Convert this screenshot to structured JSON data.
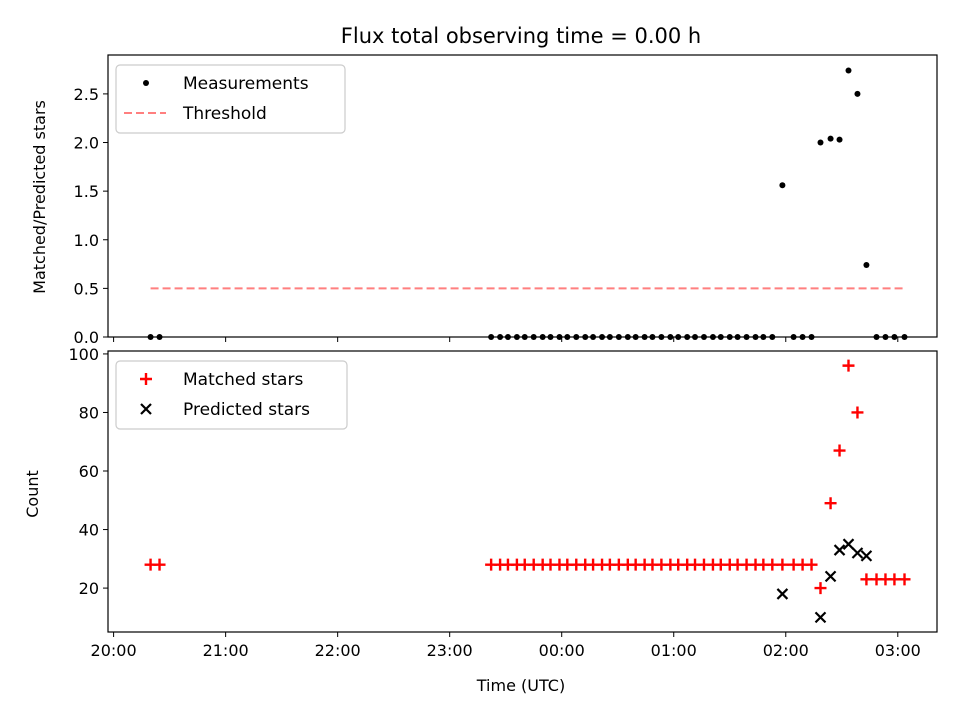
{
  "figure": {
    "title": "Flux total observing time = 0.00 h",
    "xlabel": "Time (UTC)",
    "x_tick_labels": [
      "20:00",
      "21:00",
      "22:00",
      "23:00",
      "00:00",
      "01:00",
      "02:00",
      "03:00"
    ]
  },
  "colors": {
    "measurements": "#000000",
    "threshold": "#ff7f7f",
    "matched": "#ff0000",
    "predicted": "#000000"
  },
  "chart_data": [
    {
      "type": "scatter",
      "id": "ratio",
      "ylabel": "Matched/Predicted stars",
      "ylim": [
        0,
        2.9
      ],
      "yticks": [
        0.0,
        0.5,
        1.0,
        1.5,
        2.0,
        2.5
      ],
      "y_tick_labels": [
        "0.0",
        "0.5",
        "1.0",
        "1.5",
        "2.0",
        "2.5"
      ],
      "legend": {
        "placement": "upper left",
        "entries": [
          "Measurements",
          "Threshold"
        ]
      },
      "series": [
        {
          "name": "Measurements",
          "x_hours": [
            20.33,
            20.41,
            23.37,
            23.45,
            23.52,
            23.6,
            23.67,
            23.75,
            23.83,
            23.9,
            23.98,
            24.05,
            24.13,
            24.21,
            24.28,
            24.36,
            24.43,
            24.51,
            24.59,
            24.66,
            24.74,
            24.81,
            24.89,
            24.97,
            25.04,
            25.12,
            25.19,
            25.27,
            25.35,
            25.42,
            25.5,
            25.57,
            25.65,
            25.73,
            25.8,
            25.88,
            25.97,
            26.07,
            26.15,
            26.23,
            26.31,
            26.4,
            26.48,
            26.56,
            26.64,
            26.72,
            26.81,
            26.89,
            26.97,
            27.06
          ],
          "y": [
            0,
            0,
            0,
            0,
            0,
            0,
            0,
            0,
            0,
            0,
            0,
            0,
            0,
            0,
            0,
            0,
            0,
            0,
            0,
            0,
            0,
            0,
            0,
            0,
            0,
            0,
            0,
            0,
            0,
            0,
            0,
            0,
            0,
            0,
            0,
            0,
            1.56,
            0,
            0,
            0,
            2.0,
            2.04,
            2.03,
            2.74,
            2.5,
            0.74,
            0,
            0,
            0,
            0
          ]
        },
        {
          "name": "Threshold",
          "style": "dashed",
          "x_hours": [
            20.33,
            27.06
          ],
          "y": [
            0.5,
            0.5
          ]
        }
      ]
    },
    {
      "type": "scatter",
      "id": "counts",
      "ylabel": "Count",
      "ylim": [
        5,
        101
      ],
      "yticks": [
        20,
        40,
        60,
        80,
        100
      ],
      "y_tick_labels": [
        "20",
        "40",
        "60",
        "80",
        "100"
      ],
      "legend": {
        "placement": "upper left",
        "entries": [
          "Matched stars",
          "Predicted stars"
        ]
      },
      "series": [
        {
          "name": "Matched stars",
          "marker": "+",
          "x_hours": [
            20.33,
            20.41,
            23.37,
            23.45,
            23.52,
            23.6,
            23.67,
            23.75,
            23.83,
            23.9,
            23.98,
            24.05,
            24.13,
            24.21,
            24.28,
            24.36,
            24.43,
            24.51,
            24.59,
            24.66,
            24.74,
            24.81,
            24.89,
            24.97,
            25.04,
            25.12,
            25.19,
            25.27,
            25.35,
            25.42,
            25.5,
            25.57,
            25.65,
            25.73,
            25.8,
            25.88,
            25.97,
            26.07,
            26.15,
            26.23,
            26.31,
            26.4,
            26.48,
            26.56,
            26.64,
            26.72,
            26.81,
            26.89,
            26.97,
            27.06
          ],
          "y": [
            28,
            28,
            28,
            28,
            28,
            28,
            28,
            28,
            28,
            28,
            28,
            28,
            28,
            28,
            28,
            28,
            28,
            28,
            28,
            28,
            28,
            28,
            28,
            28,
            28,
            28,
            28,
            28,
            28,
            28,
            28,
            28,
            28,
            28,
            28,
            28,
            28,
            28,
            28,
            28,
            20,
            49,
            67,
            96,
            80,
            23,
            23,
            23,
            23,
            23
          ]
        },
        {
          "name": "Predicted stars",
          "marker": "x",
          "x_hours": [
            25.97,
            26.31,
            26.4,
            26.48,
            26.56,
            26.64,
            26.72
          ],
          "y": [
            18,
            10,
            24,
            33,
            35,
            32,
            31
          ]
        }
      ]
    }
  ]
}
